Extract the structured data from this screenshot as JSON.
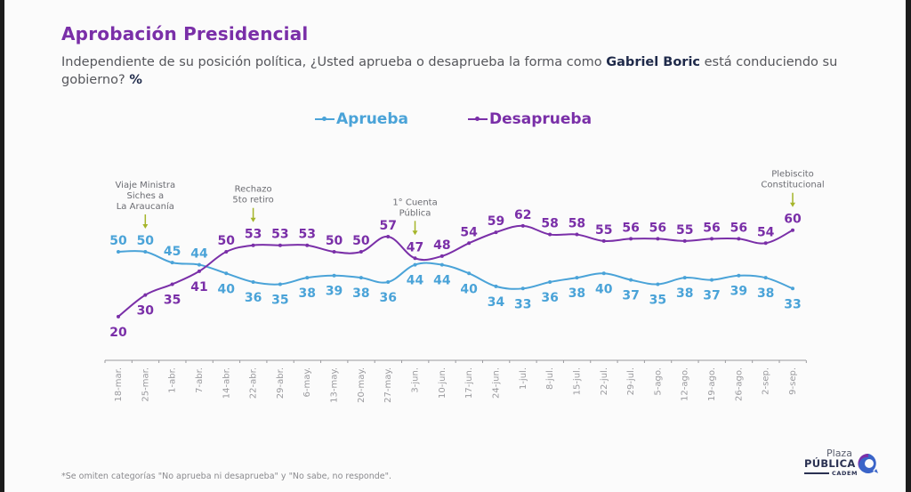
{
  "header": {
    "title": "Aprobación Presidencial",
    "subtitle_pre": "Independiente de su posición política, ¿Usted aprueba o desaprueba la forma como ",
    "subtitle_bold": "Gabriel Boric",
    "subtitle_post": " está conduciendo su gobierno? ",
    "subtitle_unit": "%"
  },
  "colors": {
    "aprueba": "#4aa3d8",
    "desaprueba": "#7a2fa8",
    "annotation_arrow": "#a5b52a",
    "axis": "#9a9a9e"
  },
  "footnote": "*Se omiten categorías \"No aprueba ni desaprueba\" y \"No sabe, no responde\".",
  "logo": {
    "line1": "Plaza",
    "line2": "PÚBLICA",
    "line3": "CADEM"
  },
  "chart_data": {
    "type": "line",
    "title": "Aprobación Presidencial",
    "xlabel": "",
    "ylabel": "%",
    "ylim": [
      20,
      62
    ],
    "grid": false,
    "legend_position": "top-center",
    "categories": [
      "18-mar.",
      "25-mar.",
      "1-abr.",
      "7-abr.",
      "14-abr.",
      "22-abr.",
      "29-abr.",
      "6-may.",
      "13-may.",
      "20-may.",
      "27-may.",
      "3-jun.",
      "10-jun.",
      "17-jun.",
      "24-jun.",
      "1-jul.",
      "8-jul.",
      "15-jul.",
      "22-jul.",
      "29-jul.",
      "5-ago.",
      "12-ago.",
      "19-ago.",
      "26-ago.",
      "2-sep.",
      "9-sep."
    ],
    "series": [
      {
        "name": "Aprueba",
        "values": [
          50,
          50,
          45,
          44,
          40,
          36,
          35,
          38,
          39,
          38,
          36,
          44,
          44,
          40,
          34,
          33,
          36,
          38,
          40,
          37,
          35,
          38,
          37,
          39,
          38,
          33
        ]
      },
      {
        "name": "Desaprueba",
        "values": [
          20,
          30,
          35,
          41,
          50,
          53,
          53,
          53,
          50,
          50,
          57,
          47,
          48,
          54,
          59,
          62,
          58,
          58,
          55,
          56,
          56,
          55,
          56,
          56,
          54,
          60
        ]
      }
    ],
    "annotations": [
      {
        "category": "25-mar.",
        "lines": [
          "Viaje Ministra",
          "Siches a",
          "La Araucanía"
        ]
      },
      {
        "category": "22-abr.",
        "lines": [
          "Rechazo",
          "5to retiro"
        ]
      },
      {
        "category": "3-jun.",
        "lines": [
          "1° Cuenta",
          "Pública"
        ]
      },
      {
        "category": "9-sep.",
        "lines": [
          "Plebiscito",
          "Constitucional"
        ]
      }
    ]
  }
}
